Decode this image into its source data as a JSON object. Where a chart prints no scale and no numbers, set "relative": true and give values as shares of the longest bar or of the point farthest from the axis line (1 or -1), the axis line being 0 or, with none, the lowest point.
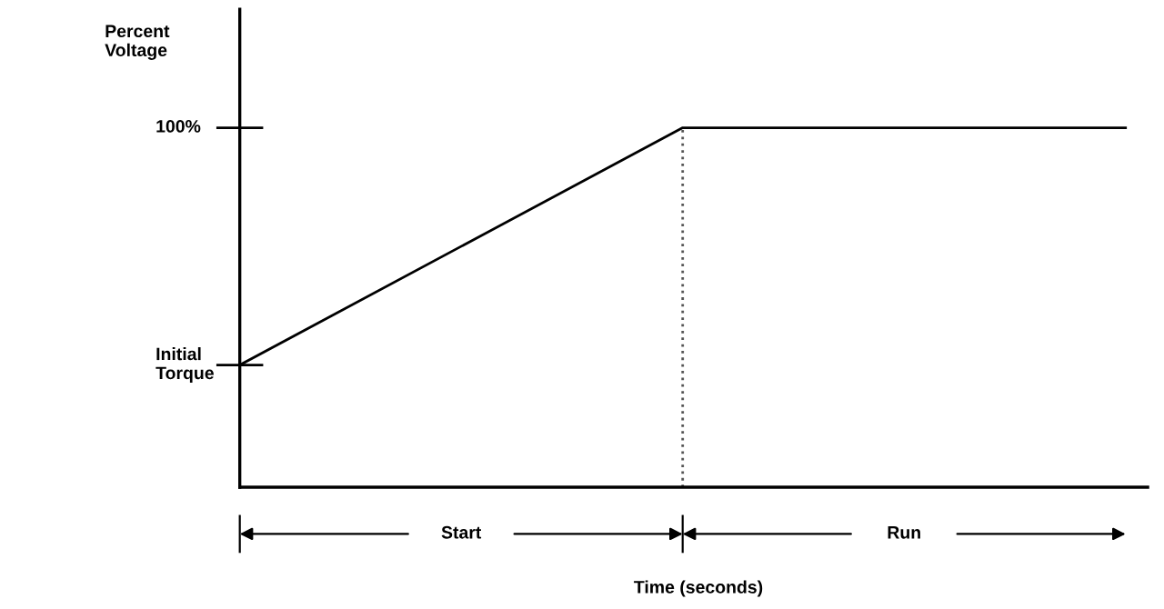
{
  "chart_data": {
    "type": "line",
    "relative": true,
    "categories": [
      null,
      null,
      null
    ],
    "series": [
      {
        "color": "#000000",
        "values": [
          0.34,
          1,
          1
        ]
      }
    ],
    "annotations": [
      "Percent\nVoltage",
      "100%",
      "Initial\nTorque",
      "Start",
      "Run",
      "Time (seconds)"
    ],
    "legend": false,
    "marker": "none",
    "line_style": "solid"
  }
}
